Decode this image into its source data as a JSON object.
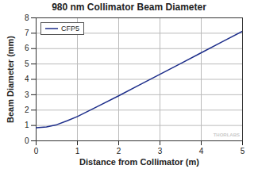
{
  "chart_data": {
    "type": "line",
    "title": "980 nm Collimator Beam Diameter",
    "x_label": "Distance from Collimator (m)",
    "y_label": "Beam Diameter (mm)",
    "x": [
      0,
      0.25,
      0.5,
      0.75,
      1,
      1.5,
      2,
      2.5,
      3,
      3.5,
      4,
      4.5,
      5
    ],
    "series": [
      {
        "name": "CFP5",
        "color": "#1c2d8a",
        "values": [
          0.85,
          0.9,
          1.05,
          1.3,
          1.58,
          2.25,
          2.93,
          3.63,
          4.33,
          5.03,
          5.73,
          6.43,
          7.13
        ]
      }
    ],
    "xlim": [
      0,
      5
    ],
    "xticks": [
      0,
      1,
      2,
      3,
      4,
      5
    ],
    "ylim": [
      0,
      8
    ],
    "yticks": [
      0,
      1,
      2,
      3,
      4,
      5,
      6,
      7,
      8
    ],
    "grid": true,
    "legend": "upper left",
    "annotations": [
      "THORLABS"
    ]
  }
}
